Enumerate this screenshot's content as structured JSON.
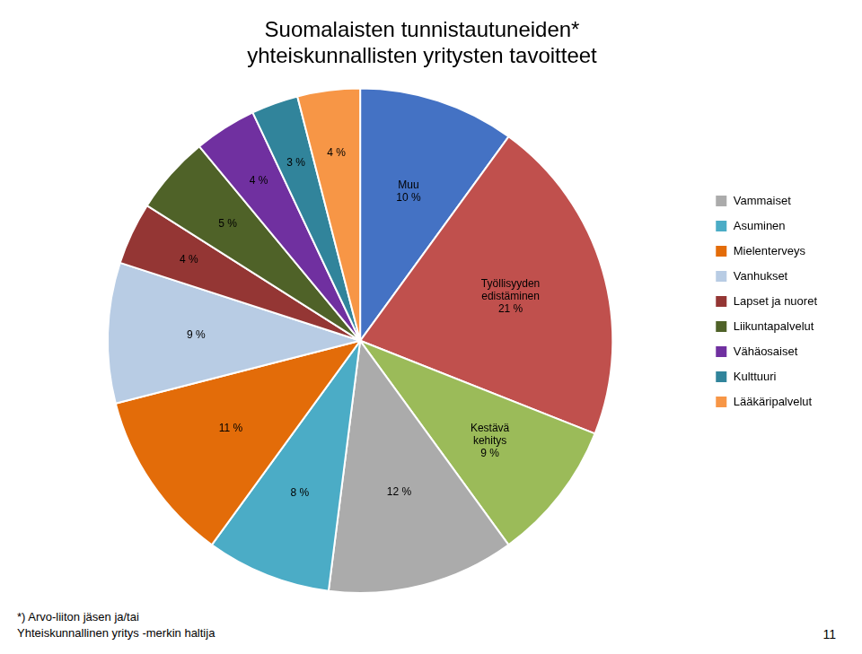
{
  "chart_data": {
    "type": "pie",
    "title": "Suomalaisten tunnistautuneiden*\nyhteiskunnallisten yritysten tavoitteet",
    "categories": [
      null,
      null,
      null,
      "Vammaiset",
      "Asuminen",
      "Mielenterveys",
      "Vanhukset",
      "Lapset ja nuoret",
      "Liikuntapalvelut",
      "Vähäosaiset",
      "Kulttuuri",
      "Lääkäripalvelut"
    ],
    "values": [
      10,
      21,
      9,
      12,
      8,
      11,
      9,
      4,
      5,
      4,
      3,
      4
    ],
    "value_labels": [
      "Muu\n10 %",
      "Työllisyyden\nedistäminen\n21 %",
      "Kestävä\nkehitys\n9 %",
      "12 %",
      "8 %",
      "11 %",
      "9 %",
      "4 %",
      "5 %",
      "4 %",
      "3 %",
      "4 %"
    ],
    "colors": [
      "#4472C4",
      "#C0504D",
      "#9BBB59",
      "#ABABAB",
      "#4BACC6",
      "#E36C09",
      "#B8CCE4",
      "#943634",
      "#4F6228",
      "#7030A0",
      "#31849B",
      "#F79646"
    ],
    "data_labels": true,
    "legend": "right",
    "footnotes": [
      "*) Arvo-liiton jäsen ja/tai",
      "Yhteiskunnallinen yritys -merkin haltija"
    ],
    "page_number": "11"
  }
}
